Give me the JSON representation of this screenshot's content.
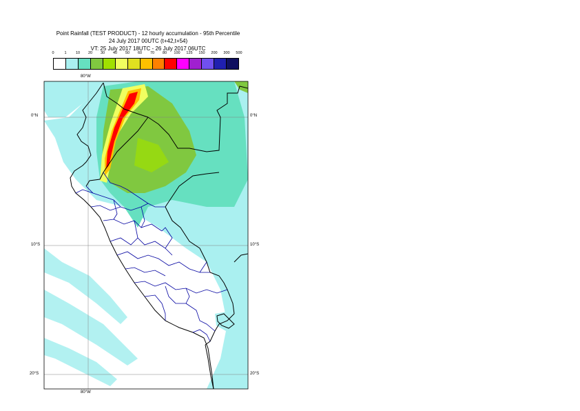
{
  "title": {
    "line1": "Point Rainfall (TEST PRODUCT) - 12 hourly accumulation - 95th Percentile",
    "line2": "24 July 2017 00UTC (t+42,t+54)",
    "line3": "VT: 25 July 2017 18UTC - 26 July 2017 06UTC"
  },
  "legend": {
    "thresholds": [
      "0",
      "1",
      "10",
      "20",
      "30",
      "40",
      "50",
      "60",
      "70",
      "80",
      "100",
      "125",
      "150",
      "200",
      "300",
      "500"
    ],
    "colors": [
      "#ffffff",
      "#aaf0f0",
      "#66e0c0",
      "#80c840",
      "#a0e000",
      "#f0ff60",
      "#e0e020",
      "#ffc000",
      "#ff8000",
      "#ff0000",
      "#ff00ff",
      "#a020d0",
      "#7050f0",
      "#2020b0",
      "#101060"
    ]
  },
  "map": {
    "lon_labels": {
      "top": "80°W",
      "bottom": "80°W"
    },
    "lat_labels": [
      "0°N",
      "10°S",
      "20°S"
    ],
    "graticule": {
      "lon": [
        -80
      ],
      "lat": [
        0,
        -10,
        -20
      ]
    },
    "colors": {
      "ocean": "#ffffff",
      "light_rain": "#aaf0f0",
      "moderate_rain": "#66e0c0",
      "heavy_rain": "#80c840",
      "coast": "#000000",
      "admin": "#0000a0",
      "grid": "#808080"
    }
  }
}
